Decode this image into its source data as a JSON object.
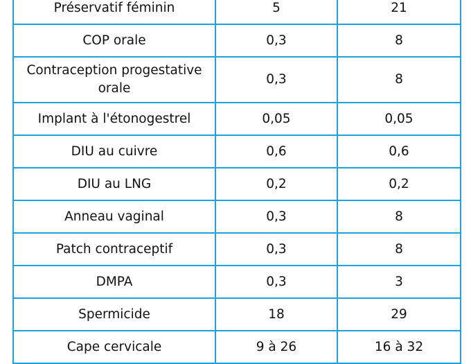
{
  "table": {
    "rows": [
      {
        "method": "Préservatif féminin",
        "perfect_use": "5",
        "typical_use": "21"
      },
      {
        "method": "COP orale",
        "perfect_use": "0,3",
        "typical_use": "8"
      },
      {
        "method": "Contraception progestative orale",
        "perfect_use": "0,3",
        "typical_use": "8"
      },
      {
        "method": "Implant à l'étonogestrel",
        "perfect_use": "0,05",
        "typical_use": "0,05"
      },
      {
        "method": "DIU au cuivre",
        "perfect_use": "0,6",
        "typical_use": "0,6"
      },
      {
        "method": "DIU au LNG",
        "perfect_use": "0,2",
        "typical_use": "0,2"
      },
      {
        "method": "Anneau vaginal",
        "perfect_use": "0,3",
        "typical_use": "8"
      },
      {
        "method": "Patch contraceptif",
        "perfect_use": "0,3",
        "typical_use": "8"
      },
      {
        "method": "DMPA",
        "perfect_use": "0,3",
        "typical_use": "3"
      },
      {
        "method": "Spermicide",
        "perfect_use": "18",
        "typical_use": "29"
      },
      {
        "method": "Cape cervicale",
        "perfect_use": "9 à 26",
        "typical_use": "16 à 32"
      }
    ],
    "border_color": "#1aa3e0"
  }
}
